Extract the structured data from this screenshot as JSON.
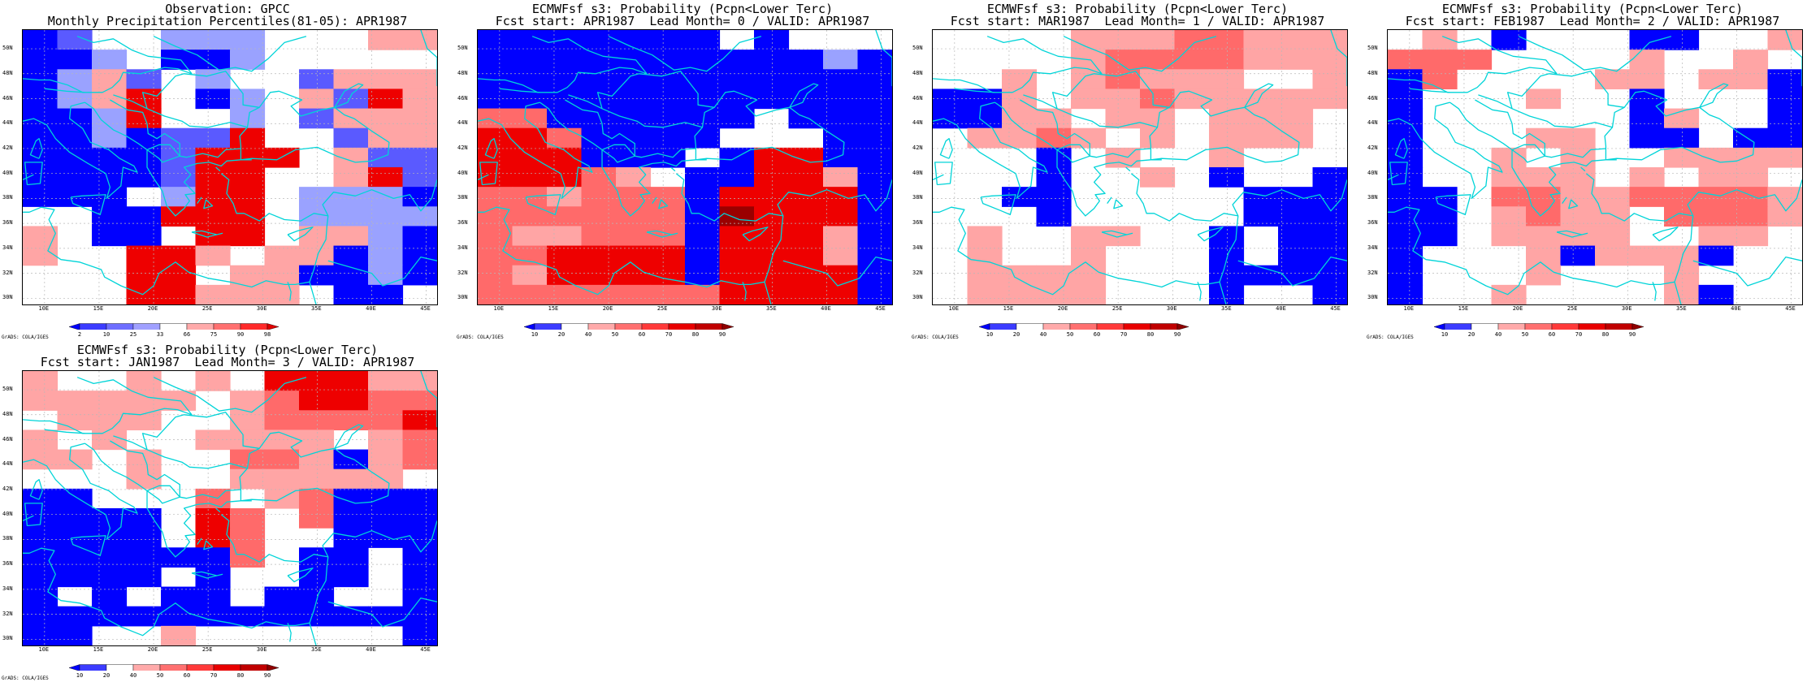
{
  "panels": [
    {
      "title_line1": "Observation: GPCC",
      "title_line2": "Monthly Precipitation Percentiles(81-05): APR1987",
      "colorbar_labels": [
        "2",
        "10",
        "25",
        "33",
        "66",
        "75",
        "90",
        "98"
      ],
      "colorbar_colors": [
        "#0000ff",
        "#3c3cff",
        "#6e6eff",
        "#a0a0ff",
        "#ffffff",
        "#ffaaaa",
        "#ff7070",
        "#ff2a2a",
        "#e00000"
      ],
      "cells": [
        "BMW.LLL...FF",
        "BBL.BBL.....",
        "BLFM.L..MFFF",
        "BLFR.BL.FMRF",
        "BBLR..L.MFFF",
        "BBLBMMR..MFF",
        "BBBBMRRR.FMM",
        "BBBBMRR..FRM",
        "BBB.LRR.LLLB",
        "..BBRRR.LLLL",
        "F.BB.RR.FFLB",
        "F..RRF.FFBLB",
        "...RR.FFBBLB",
        "...RRFFF.BB."
      ]
    },
    {
      "title_line1": "ECMWFsf s3: Probability (Pcpn<Lower Terc)",
      "title_line2": "Fcst start: APR1987  Lead Month= 0 / VALID: APR1987",
      "colorbar_labels": [
        "10",
        "20",
        "40",
        "50",
        "60",
        "70",
        "80",
        "90"
      ],
      "colorbar_colors": [
        "#0000ff",
        "#3c3cff",
        "#ffffff",
        "#ffaaaa",
        "#ff7070",
        "#ff3a3a",
        "#e80000",
        "#c00000",
        "#900000"
      ],
      "cells": [
        "BBBBBBB.B...",
        "BBBBBBBBBBLB",
        "BBBBBBBBBBBB",
        "BBBBBBBBBBBB",
        "MMBBBBBB.BBB",
        "RRMBBBB...BB",
        "RRRBBB.BRRBB",
        "RRRMF.BBRRFB",
        "MMFMMMBRRRRB",
        "MMMMMMBDRRRB",
        "MFFMMMBRRRFB",
        "MMRRRRBRRRFB",
        "MFRRRRBRRRRB",
        "MMMMMMMRRRRB"
      ]
    },
    {
      "title_line1": "ECMWFsf s3: Probability (Pcpn<Lower Terc)",
      "title_line2": "Fcst start: MAR1987  Lead Month= 1 / VALID: APR1987",
      "colorbar_labels": [
        "10",
        "20",
        "40",
        "50",
        "60",
        "70",
        "80",
        "90"
      ],
      "colorbar_colors": [
        "#0000ff",
        "#3c3cff",
        "#ffffff",
        "#ffaaaa",
        "#ff7070",
        "#ff3a3a",
        "#e80000",
        "#c00000",
        "#900000"
      ],
      "cells": [
        "....FFFMMFFF",
        "....FMMMMFFF",
        "..F.FMFFF..F",
        "BBF.FFMFFFFF",
        "BBFF.FF.FFF.",
        ".FFMF.F.FFF.",
        "...B.F..F...",
        "...B..F.B..B",
        "..BB.....BBB",
        "...B.....BBB",
        ".F..FF..B.BB",
        ".F..F...B.BB",
        ".FFFF...BBBB",
        ".FFFF...B..B"
      ]
    },
    {
      "title_line1": "ECMWFsf s3: Probability (Pcpn<Lower Terc)",
      "title_line2": "Fcst start: FEB1987  Lead Month= 2 / VALID: APR1987",
      "colorbar_labels": [
        "10",
        "20",
        "40",
        "50",
        "60",
        "70",
        "80",
        "90"
      ],
      "colorbar_colors": [
        "#0000ff",
        "#3c3cff",
        "#ffffff",
        "#ffaaaa",
        "#ff7070",
        "#ff3a3a",
        "#e80000",
        "#c00000",
        "#900000"
      ],
      "cells": [
        ".F.B...BB..F",
        "MMM....F..F.",
        "BM....FF.FFB",
        "B...F..B...B",
        "B......BF..B",
        "B...FF.BB.BB",
        "B..F.F..FFFF",
        "B..FFF.F.FF.",
        "BB.MMFFMMMMF",
        "BB.FMFF.MMMF",
        "BB.FFFF..FF.",
        "B...FBFFFB..",
        "B...F...F...",
        "B..F....FB.."
      ]
    },
    {
      "title_line1": "ECMWFsf s3: Probability (Pcpn<Lower Terc)",
      "title_line2": "Fcst start: JAN1987  Lead Month= 3 / VALID: APR1987",
      "colorbar_labels": [
        "10",
        "20",
        "40",
        "50",
        "60",
        "70",
        "80",
        "90"
      ],
      "colorbar_colors": [
        "#0000ff",
        "#3c3cff",
        "#ffffff",
        "#ffaaaa",
        "#ff7070",
        "#ff3a3a",
        "#e80000",
        "#c00000",
        "#900000"
      ],
      "cells": [
        "F..F.F.RRRFF",
        "FFFFF.FMRRMM",
        ".FFF..FMMMMR",
        "F.F..FFFF.FM",
        "FF.F..MMFBFM",
        "...F..FFFFF.",
        "BB...M.FMBBB",
        "BBBB.RM.MBBB",
        "BBBB.RM..BBB",
        "BBBBBBM.BB.B",
        "BBBB.B..BB.B",
        "B.B.BB.BB..B",
        "BBBBBBBBBBBB",
        "BB..F......B"
      ]
    }
  ],
  "axes": {
    "lat_ticks": [
      "50N",
      "48N",
      "46N",
      "44N",
      "42N",
      "40N",
      "38N",
      "36N",
      "34N",
      "32N",
      "30N"
    ],
    "lon_ticks": [
      "10E",
      "15E",
      "20E",
      "25E",
      "30E",
      "35E",
      "40E",
      "45E"
    ],
    "lat_range": [
      29.5,
      51.5
    ],
    "lon_range": [
      8.0,
      46.0
    ]
  },
  "credit": "GrADS: COLA/IGES",
  "colors": {
    "coast": "#00d4d8",
    "grid": "#b8b8b8"
  }
}
